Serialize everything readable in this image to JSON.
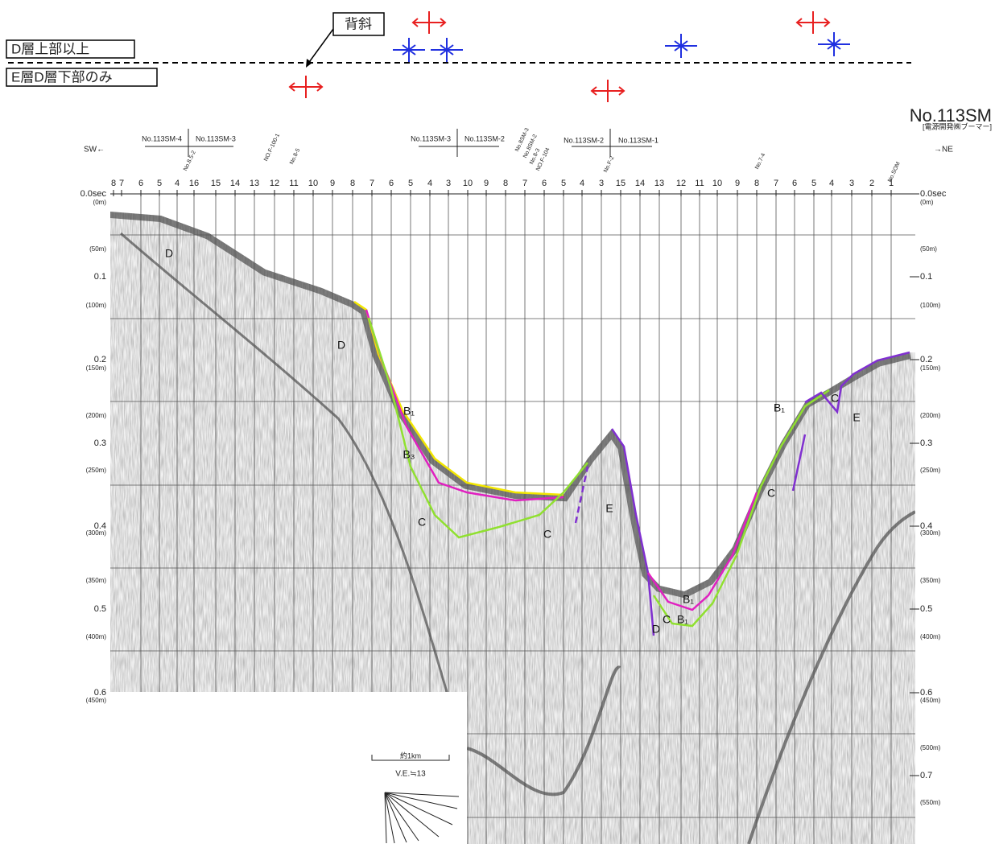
{
  "legend": {
    "anticline": "背斜",
    "upper": "D層上部以上",
    "lower": "E層D層下部のみ"
  },
  "header": {
    "title": "No.113SM",
    "subtitle": "[電源開発㈱ブーマー]",
    "left": "SW←",
    "right": "→NE"
  },
  "lines": [
    "No.113SM-4",
    "No.113SM-3",
    "No.113SM-3",
    "No.113SM-2",
    "No.113SM-2",
    "No.113SM-1"
  ],
  "crossings": [
    "No.8.5-2",
    "NO.F-100-1",
    "No.8-5",
    "No.8SM-3",
    "No.8SM-2",
    "No.8-3",
    "NO.F-104",
    "No.F-2",
    "No.7-4",
    "No.SOM"
  ],
  "shotpoints": [
    "8",
    "7",
    "6",
    "5",
    "4",
    "16",
    "15",
    "14",
    "13",
    "12",
    "11",
    "10",
    "9",
    "8",
    "7",
    "6",
    "5",
    "4",
    "3",
    "10",
    "9",
    "8",
    "7",
    "6",
    "5",
    "4",
    "3",
    "15",
    "14",
    "13",
    "12",
    "11",
    "10",
    "9",
    "8",
    "7",
    "6",
    "5",
    "4",
    "3",
    "2",
    "1"
  ],
  "left_axis": [
    "0.0sec",
    "(0m)",
    "(50m)",
    "0.1",
    "(100m)",
    "0.2",
    "(150m)",
    "(200m)",
    "0.3",
    "(250m)",
    "0.4",
    "(300m)",
    "(350m)",
    "0.5",
    "(400m)",
    "0.6",
    "(450m)"
  ],
  "right_axis": [
    "0.0sec",
    "(0m)",
    "(50m)",
    "0.1",
    "(100m)",
    "0.2",
    "(150m)",
    "(200m)",
    "0.3",
    "(250m)",
    "0.4",
    "(300m)",
    "(350m)",
    "0.5",
    "(400m)",
    "0.6",
    "(450m)",
    "(500m)",
    "0.7",
    "(550m)"
  ],
  "layers": [
    "D",
    "D",
    "B₁",
    "B₃",
    "C",
    "C",
    "E",
    "B₁",
    "C",
    "B₁",
    "D",
    "C",
    "B₁",
    "C",
    "E"
  ],
  "scale": {
    "distance": "約1km",
    "ve": "V.E.≒13"
  }
}
